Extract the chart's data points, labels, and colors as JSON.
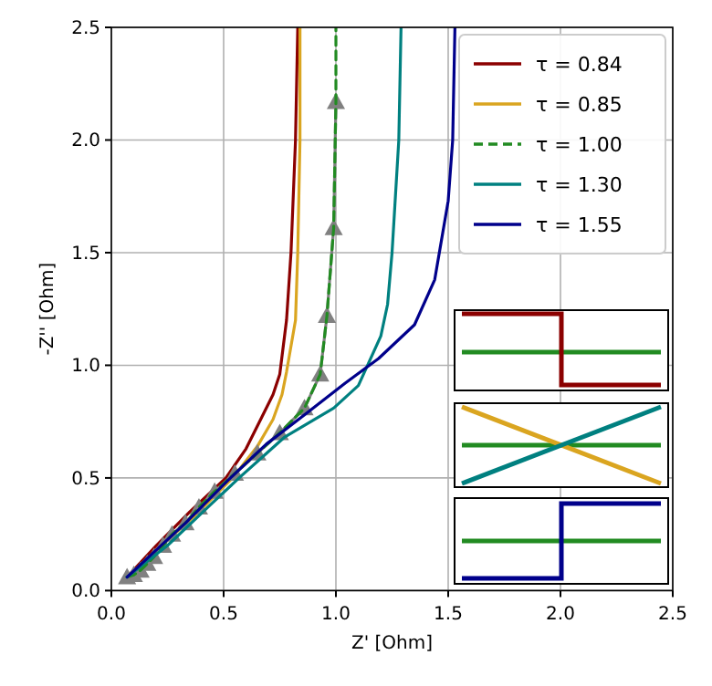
{
  "chart_data": {
    "type": "line",
    "xlabel": "Z' [Ohm]",
    "ylabel": "-Z'' [Ohm]",
    "xlim": [
      0,
      2.5
    ],
    "ylim": [
      0,
      2.5
    ],
    "xticks": [
      {
        "value": 0,
        "label": "0.0"
      },
      {
        "value": 0.5,
        "label": "0.5"
      },
      {
        "value": 1,
        "label": "1.0"
      },
      {
        "value": 1.5,
        "label": "1.5"
      },
      {
        "value": 2,
        "label": "2.0"
      },
      {
        "value": 2.5,
        "label": "2.5"
      }
    ],
    "yticks": [
      {
        "value": 0,
        "label": "0.0"
      },
      {
        "value": 0.5,
        "label": "0.5"
      },
      {
        "value": 1,
        "label": "1.0"
      },
      {
        "value": 1.5,
        "label": "1.5"
      },
      {
        "value": 2,
        "label": "2.0"
      },
      {
        "value": 2.5,
        "label": "2.5"
      }
    ],
    "grid": true,
    "legend": "top right",
    "series": [
      {
        "name": "τ = 0.84",
        "color": "#8b0000",
        "x": [
          0.07,
          0.2,
          0.35,
          0.51,
          0.6,
          0.67,
          0.72,
          0.75,
          0.78,
          0.8,
          0.82,
          0.83
        ],
        "values": [
          0.06,
          0.2,
          0.35,
          0.5,
          0.63,
          0.77,
          0.87,
          0.96,
          1.2,
          1.5,
          2.0,
          2.5
        ]
      },
      {
        "name": "τ = 0.85",
        "color": "#daa520",
        "x": [
          0.07,
          0.2,
          0.37,
          0.54,
          0.65,
          0.72,
          0.76,
          0.78,
          0.82,
          0.83,
          0.84,
          0.84
        ],
        "values": [
          0.06,
          0.18,
          0.33,
          0.5,
          0.64,
          0.76,
          0.87,
          0.97,
          1.2,
          1.5,
          2.0,
          2.5
        ]
      },
      {
        "color": "#808080",
        "marker": "triangle",
        "x": [
          0.07,
          0.1,
          0.13,
          0.16,
          0.19,
          0.23,
          0.27,
          0.33,
          0.39,
          0.46,
          0.55,
          0.65,
          0.75,
          0.86,
          0.93,
          0.96,
          0.99,
          1.0
        ],
        "values": [
          0.06,
          0.07,
          0.09,
          0.12,
          0.15,
          0.2,
          0.25,
          0.3,
          0.37,
          0.44,
          0.52,
          0.61,
          0.7,
          0.81,
          0.96,
          1.22,
          1.61,
          2.17
        ]
      },
      {
        "name": "τ = 1.00",
        "color": "#228b22",
        "line_style": "dashed",
        "x": [
          0.07,
          0.1,
          0.13,
          0.16,
          0.19,
          0.23,
          0.27,
          0.33,
          0.39,
          0.46,
          0.55,
          0.65,
          0.75,
          0.86,
          0.93,
          0.96,
          0.99,
          1.0,
          1.0
        ],
        "values": [
          0.06,
          0.07,
          0.09,
          0.12,
          0.15,
          0.2,
          0.25,
          0.3,
          0.37,
          0.44,
          0.52,
          0.61,
          0.7,
          0.81,
          0.96,
          1.22,
          1.61,
          2.17,
          2.5
        ]
      },
      {
        "name": "τ = 1.30",
        "color": "#008080",
        "x": [
          0.07,
          0.25,
          0.44,
          0.58,
          0.77,
          0.99,
          1.1,
          1.2,
          1.23,
          1.25,
          1.28,
          1.29
        ],
        "values": [
          0.06,
          0.2,
          0.38,
          0.51,
          0.68,
          0.81,
          0.91,
          1.13,
          1.27,
          1.5,
          2.0,
          2.5
        ]
      },
      {
        "name": "τ = 1.55",
        "color": "#00008b",
        "x": [
          0.07,
          0.2,
          0.33,
          0.52,
          0.69,
          0.86,
          1.04,
          1.19,
          1.35,
          1.44,
          1.5,
          1.52,
          1.53
        ],
        "values": [
          0.06,
          0.18,
          0.3,
          0.49,
          0.65,
          0.78,
          0.92,
          1.03,
          1.18,
          1.38,
          1.73,
          2.0,
          2.5
        ]
      }
    ]
  }
}
